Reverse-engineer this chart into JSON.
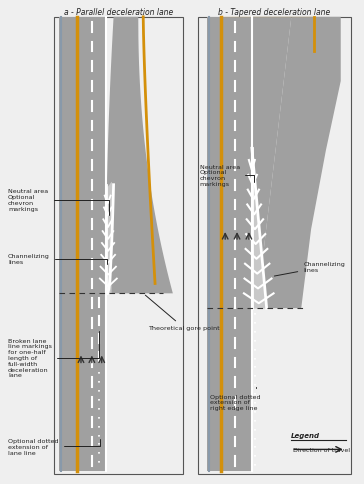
{
  "title_a": "a - Parallel deceleration lane",
  "title_b": "b - Tapered deceleration lane",
  "bg_color": "#efefef",
  "road_color": "#a0a0a0",
  "white": "#ffffff",
  "yellow": "#d4900a",
  "blue_edge": "#8899aa",
  "dark_line": "#333333",
  "ann_color": "#222222",
  "legend_text": "Legend",
  "legend_arrow": "Direction of travel",
  "ann_fs": 4.8
}
